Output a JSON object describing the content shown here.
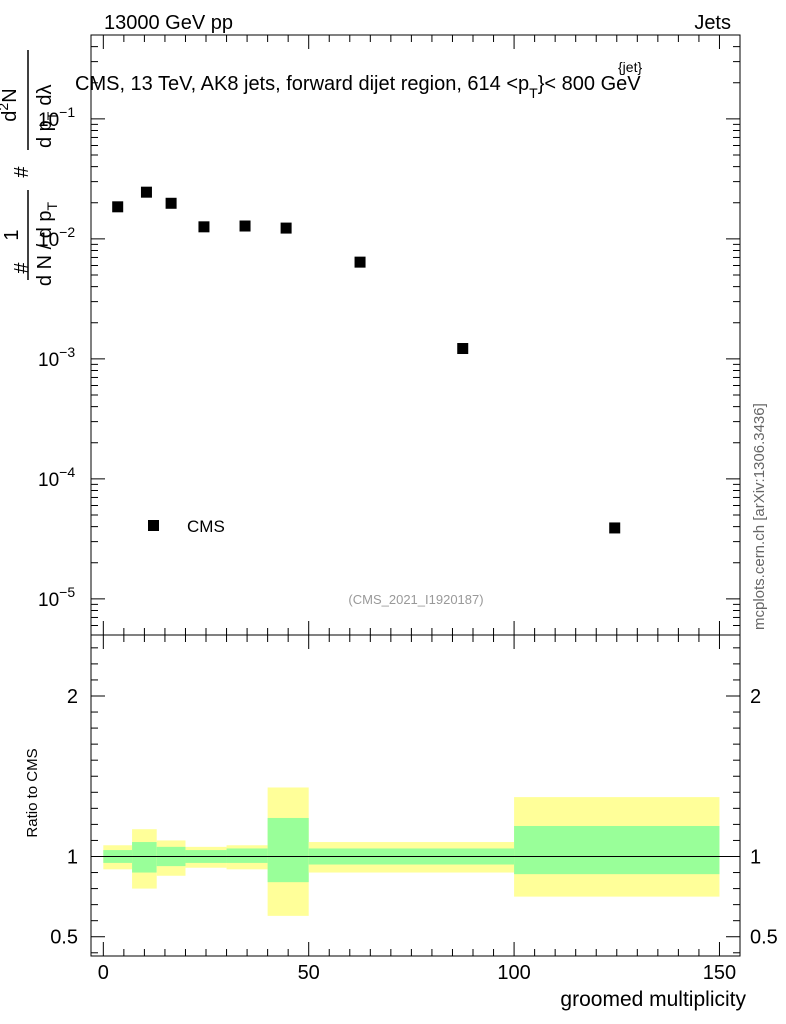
{
  "header": {
    "energy_label": "13000 GeV pp",
    "category_label": "Jets",
    "plot_title_pre": "CMS, 13 TeV, AK8 jets, forward dijet region, 614 <p",
    "plot_title_sub": "T",
    "plot_title_sup": "{jet}",
    "plot_title_post": "}< 800 GeV",
    "side_label": "mcplots.cern.ch [arXiv:1306.3436]",
    "analysis_id": "(CMS_2021_I1920187)"
  },
  "chart_data": {
    "type": "scatter",
    "title": "CMS, 13 TeV, AK8 jets, forward dijet region, 614 <p_T^{jet}< 800 GeV",
    "xlabel": "groomed multiplicity",
    "ylabel": "1/(dN/dp_T) · d²N/(dp_T dλ)",
    "ylabel_parts": {
      "top_num": "1",
      "top_den": "d N / d p",
      "top_den_sub": "T",
      "num": "d",
      "num_sup": "2",
      "num_n": "N",
      "den": "d p",
      "den_sub": "T",
      "den_lambda": "dλ",
      "hash": "#"
    },
    "xlim": [
      -3,
      155
    ],
    "ylim_log": [
      5e-06,
      0.5
    ],
    "y_tick_labels": [
      {
        "label": "10",
        "exp": "−5",
        "value": 1e-05
      },
      {
        "label": "10",
        "exp": "−4",
        "value": 0.0001
      },
      {
        "label": "10",
        "exp": "−3",
        "value": 0.001
      },
      {
        "label": "10",
        "exp": "−2",
        "value": 0.01
      },
      {
        "label": "10",
        "exp": "−1",
        "value": 0.1
      }
    ],
    "x_ticks": [
      {
        "label": "0",
        "value": 0
      },
      {
        "label": "50",
        "value": 50
      },
      {
        "label": "100",
        "value": 100
      },
      {
        "label": "150",
        "value": 150
      }
    ],
    "series": [
      {
        "name": "CMS",
        "marker": "square",
        "color": "#000000",
        "x": [
          3.5,
          10.5,
          16.5,
          24.5,
          34.5,
          44.5,
          62.5,
          87.5,
          124.5
        ],
        "y": [
          0.0185,
          0.0245,
          0.0198,
          0.0126,
          0.0128,
          0.0123,
          0.0064,
          0.00122,
          3.9e-05
        ]
      }
    ],
    "legend": {
      "entries": [
        "CMS"
      ],
      "position": "bottom-left"
    },
    "ratio_panel": {
      "ylabel": "Ratio to CMS",
      "ylim": [
        0.38,
        2.38
      ],
      "tick_labels": [
        {
          "label": "0.5",
          "value": 0.5
        },
        {
          "label": "1",
          "value": 1
        },
        {
          "label": "2",
          "value": 2
        }
      ],
      "reference_line": 1,
      "bins": [
        {
          "lo": 0,
          "hi": 7,
          "green_lo": 0.96,
          "green_hi": 1.04,
          "yellow_lo": 0.92,
          "yellow_hi": 1.07
        },
        {
          "lo": 7,
          "hi": 13,
          "green_lo": 0.9,
          "green_hi": 1.09,
          "yellow_lo": 0.8,
          "yellow_hi": 1.17
        },
        {
          "lo": 13,
          "hi": 20,
          "green_lo": 0.94,
          "green_hi": 1.06,
          "yellow_lo": 0.88,
          "yellow_hi": 1.1
        },
        {
          "lo": 20,
          "hi": 30,
          "green_lo": 0.96,
          "green_hi": 1.04,
          "yellow_lo": 0.93,
          "yellow_hi": 1.06
        },
        {
          "lo": 30,
          "hi": 40,
          "green_lo": 0.96,
          "green_hi": 1.05,
          "yellow_lo": 0.92,
          "yellow_hi": 1.07
        },
        {
          "lo": 40,
          "hi": 50,
          "green_lo": 0.84,
          "green_hi": 1.24,
          "yellow_lo": 0.63,
          "yellow_hi": 1.43
        },
        {
          "lo": 50,
          "hi": 100,
          "green_lo": 0.95,
          "green_hi": 1.05,
          "yellow_lo": 0.9,
          "yellow_hi": 1.09
        },
        {
          "lo": 100,
          "hi": 150,
          "green_lo": 0.89,
          "green_hi": 1.19,
          "yellow_lo": 0.75,
          "yellow_hi": 1.37
        }
      ],
      "band_colors": {
        "inner": "#99ff99",
        "outer": "#ffff99"
      }
    }
  }
}
